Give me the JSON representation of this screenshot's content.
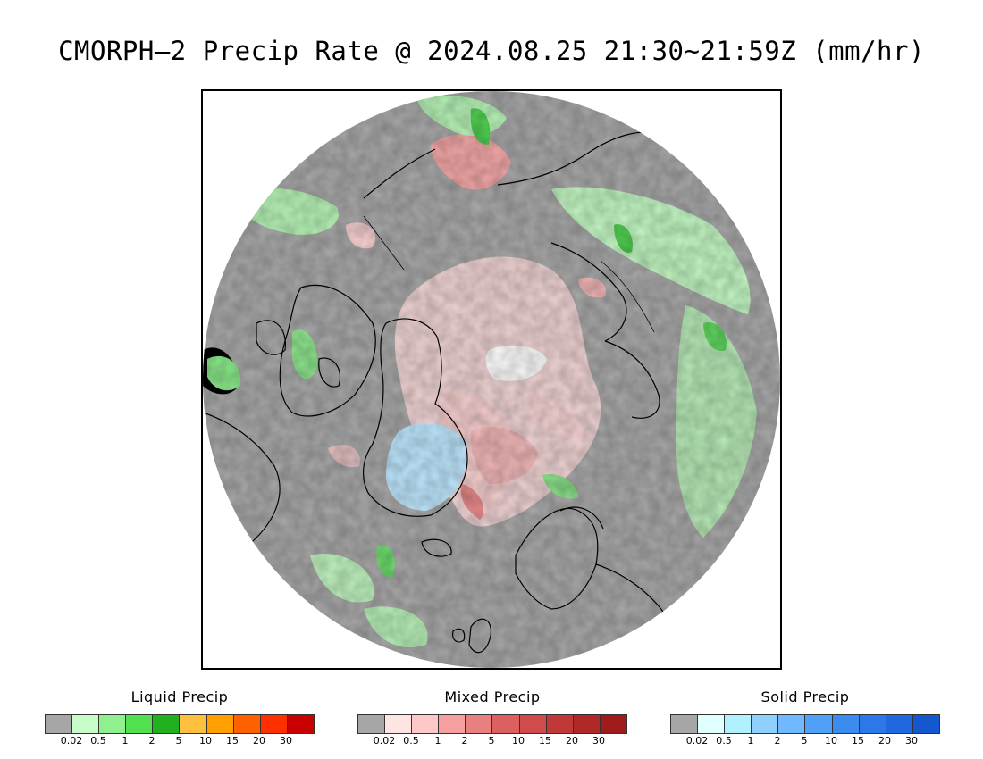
{
  "title": "CMORPH–2 Precip Rate @ 2024.08.25 21:30~21:59Z (mm/hr)",
  "map": {
    "projection": "north-polar-stereographic",
    "background_color": "#a9a9a9",
    "coastline_color": "#000000",
    "regions_visible": [
      "Arctic Ocean",
      "Greenland",
      "North America",
      "Siberia",
      "Scandinavia",
      "British Isles",
      "Iceland"
    ]
  },
  "legends": [
    {
      "title": "Liquid Precip",
      "colors": [
        "#a6a6a6",
        "#c8fcc8",
        "#90f090",
        "#50e050",
        "#20b020",
        "#ffc040",
        "#ffa000",
        "#ff6000",
        "#ff3000",
        "#c80000"
      ],
      "labels": [
        "0.02",
        "0.5",
        "1",
        "2",
        "5",
        "10",
        "15",
        "20",
        "30"
      ]
    },
    {
      "title": "Mixed Precip",
      "colors": [
        "#a6a6a6",
        "#ffe4e4",
        "#ffc8c8",
        "#f4a0a0",
        "#e88080",
        "#dc6060",
        "#d04c4c",
        "#c03838",
        "#b02828",
        "#a01c1c"
      ],
      "labels": [
        "0.02",
        "0.5",
        "1",
        "2",
        "5",
        "10",
        "15",
        "20",
        "30"
      ]
    },
    {
      "title": "Solid Precip",
      "colors": [
        "#a6a6a6",
        "#e0ffff",
        "#b0f0ff",
        "#90d0ff",
        "#70b8ff",
        "#50a0f8",
        "#3c8cf0",
        "#2c78e8",
        "#2068e0",
        "#1458d0"
      ],
      "labels": [
        "0.02",
        "0.5",
        "1",
        "2",
        "5",
        "10",
        "15",
        "20",
        "30"
      ]
    }
  ]
}
